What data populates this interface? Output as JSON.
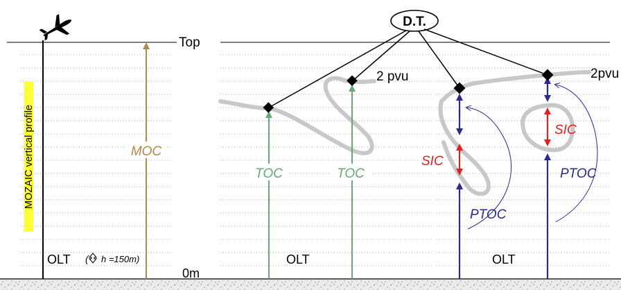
{
  "top_label": "Top",
  "ground_label": "0m",
  "dt_label": "D.T.",
  "panel1": {
    "profile_label": "MOZAIC vertical profile",
    "moc_label": "MOC",
    "olt_label": "OLT",
    "olt_note": "h =150m)",
    "olt_note_open": "(",
    "arrow_icon": "up-down-arrow-icon",
    "plane_icon": "airplane-icon"
  },
  "panel2": {
    "pvu_label": "2 pvu",
    "toc_left": "TOC",
    "toc_right": "TOC",
    "olt_label": "OLT"
  },
  "panel3": {
    "pvu_label": "2pvu",
    "sic_left": "SIC",
    "sic_right": "SIC",
    "ptoc_left": "PTOC",
    "ptoc_right": "PTOC",
    "olt_label": "OLT"
  },
  "colors": {
    "moc": "#b08a4a",
    "toc": "#6aa87a",
    "ptoc": "#2a2a8a",
    "sic": "#e02020",
    "pvu_curve": "#c8c8c8",
    "highlight": "#ffff33"
  }
}
